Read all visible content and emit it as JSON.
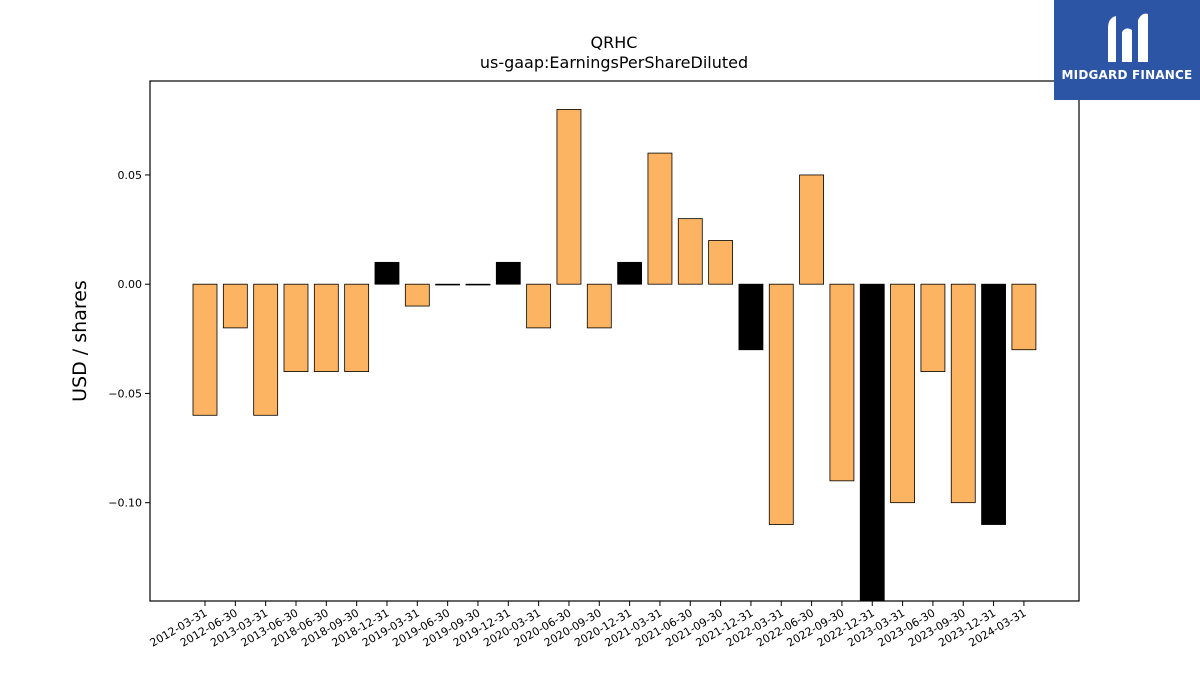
{
  "chart_data": {
    "type": "bar",
    "title": "QRHC",
    "subtitle": "us-gaap:EarningsPerShareDiluted",
    "ylabel": "USD / shares",
    "xlabel": "",
    "ylim": [
      -0.145,
      0.093
    ],
    "yticks": [
      {
        "value": 0.05,
        "label": "0.05"
      },
      {
        "value": 0.0,
        "label": "0.00"
      },
      {
        "value": -0.05,
        "label": "−0.05"
      },
      {
        "value": -0.1,
        "label": "−0.10"
      }
    ],
    "grid": false,
    "colors": {
      "default": "#fdb462",
      "highlight": "#000000",
      "edge": "#000000"
    },
    "categories": [
      "2012-03-31",
      "2012-06-30",
      "2013-03-31",
      "2013-06-30",
      "2018-06-30",
      "2018-09-30",
      "2018-12-31",
      "2019-03-31",
      "2019-06-30",
      "2019-09-30",
      "2019-12-31",
      "2020-03-31",
      "2020-06-30",
      "2020-09-30",
      "2020-12-31",
      "2021-03-31",
      "2021-06-30",
      "2021-09-30",
      "2021-12-31",
      "2022-03-31",
      "2022-06-30",
      "2022-09-30",
      "2022-12-31",
      "2023-03-31",
      "2023-06-30",
      "2023-09-30",
      "2023-12-31",
      "2024-03-31"
    ],
    "values": [
      -0.06,
      -0.02,
      -0.06,
      -0.04,
      -0.04,
      -0.04,
      0.01,
      -0.01,
      0.0,
      0.0,
      0.01,
      -0.02,
      0.08,
      -0.02,
      0.01,
      0.06,
      0.03,
      0.02,
      -0.03,
      -0.11,
      0.05,
      -0.09,
      -0.15,
      -0.1,
      -0.04,
      -0.1,
      -0.11,
      -0.03
    ],
    "highlighted": [
      false,
      false,
      false,
      false,
      false,
      false,
      true,
      false,
      false,
      false,
      true,
      false,
      false,
      false,
      true,
      false,
      false,
      false,
      true,
      false,
      false,
      false,
      true,
      false,
      false,
      false,
      true,
      false
    ]
  },
  "logo": {
    "text": "MIDGARD FINANCE",
    "icon": "midgard-logo-icon"
  }
}
